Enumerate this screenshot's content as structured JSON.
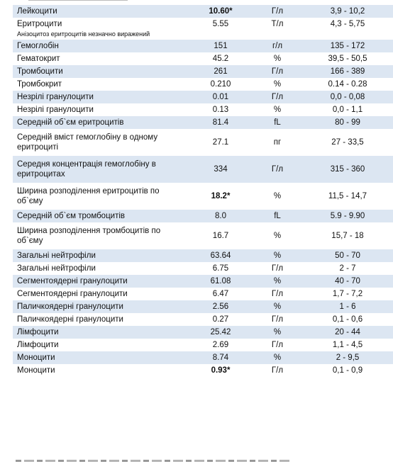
{
  "rows": [
    {
      "name": "Лейкоцити",
      "value": "10.60*",
      "unit": "Г/л",
      "ref": "3,9 - 10,2",
      "flag": true,
      "stripe": true
    },
    {
      "name": "Еритроцити",
      "value": "5.55",
      "unit": "Т/л",
      "ref": "4,3 - 5,75",
      "flag": false,
      "stripe": false
    },
    {
      "note": "Анізоцитоз еритроцитів незначно виражений"
    },
    {
      "name": "Гемоглобін",
      "value": "151",
      "unit": "г/л",
      "ref": "135 - 172",
      "flag": false,
      "stripe": true
    },
    {
      "name": "Гематокрит",
      "value": "45.2",
      "unit": "%",
      "ref": "39,5 - 50,5",
      "flag": false,
      "stripe": false
    },
    {
      "name": "Тромбоцити",
      "value": "261",
      "unit": "Г/л",
      "ref": "166 - 389",
      "flag": false,
      "stripe": true
    },
    {
      "name": "Тромбокрит",
      "value": "0.210",
      "unit": "%",
      "ref": "0.14 - 0.28",
      "flag": false,
      "stripe": false
    },
    {
      "name": "Незрілі гранулоцити",
      "value": "0.01",
      "unit": "Г/л",
      "ref": "0,0 - 0,08",
      "flag": false,
      "stripe": true
    },
    {
      "name": "Незрілі гранулоцити",
      "value": "0.13",
      "unit": "%",
      "ref": "0,0 - 1,1",
      "flag": false,
      "stripe": false
    },
    {
      "name": "Середній об`єм еритроцитів",
      "value": "81.4",
      "unit": "fL",
      "ref": "80 - 99",
      "flag": false,
      "stripe": true
    },
    {
      "name": "Середній вміст гемоглобіну в одному еритроциті",
      "value": "27.1",
      "unit": "пг",
      "ref": "27 - 33,5",
      "flag": false,
      "stripe": false,
      "tall": true
    },
    {
      "name": "Середня концентрація гемоглобіну в еритроцитах",
      "value": "334",
      "unit": "Г/л",
      "ref": "315 - 360",
      "flag": false,
      "stripe": true,
      "tall": true
    },
    {
      "name": "Ширина розподілення еритроцитів по об`єму",
      "value": "18.2*",
      "unit": "%",
      "ref": "11,5 - 14,7",
      "flag": true,
      "stripe": false,
      "tall": true
    },
    {
      "name": "Середній об`єм тромбоцитів",
      "value": "8.0",
      "unit": "fL",
      "ref": "5.9 - 9.90",
      "flag": false,
      "stripe": true
    },
    {
      "name": "Ширина розподілення тромбоцитів по об`єму",
      "value": "16.7",
      "unit": "%",
      "ref": "15,7 - 18",
      "flag": false,
      "stripe": false,
      "tall": true
    },
    {
      "name": "Загальні нейтрофіли",
      "value": "63.64",
      "unit": "%",
      "ref": "50 - 70",
      "flag": false,
      "stripe": true
    },
    {
      "name": "Загальні нейтрофіли",
      "value": "6.75",
      "unit": "Г/л",
      "ref": "2 - 7",
      "flag": false,
      "stripe": false
    },
    {
      "name": "Сегментоядерні гранулоцити",
      "value": "61.08",
      "unit": "%",
      "ref": "40 - 70",
      "flag": false,
      "stripe": true
    },
    {
      "name": "Сегментоядерні гранулоцити",
      "value": "6.47",
      "unit": "Г/л",
      "ref": "1,7 - 7,2",
      "flag": false,
      "stripe": false
    },
    {
      "name": "Паличкоядерні гранулоцити",
      "value": "2.56",
      "unit": "%",
      "ref": "1 - 6",
      "flag": false,
      "stripe": true
    },
    {
      "name": "Паличкоядерні гранулоцити",
      "value": "0.27",
      "unit": "Г/л",
      "ref": "0,1 - 0,6",
      "flag": false,
      "stripe": false
    },
    {
      "name": "Лімфоцити",
      "value": "25.42",
      "unit": "%",
      "ref": "20 - 44",
      "flag": false,
      "stripe": true
    },
    {
      "name": "Лімфоцити",
      "value": "2.69",
      "unit": "Г/л",
      "ref": "1,1 - 4,5",
      "flag": false,
      "stripe": false
    },
    {
      "name": "Моноцити",
      "value": "8.74",
      "unit": "%",
      "ref": "2 - 9,5",
      "flag": false,
      "stripe": true
    },
    {
      "name": "Моноцити",
      "value": "0.93*",
      "unit": "Г/л",
      "ref": "0,1 - 0,9",
      "flag": true,
      "stripe": false
    }
  ],
  "colors": {
    "stripe": "#dce6f2",
    "text": "#111111"
  }
}
